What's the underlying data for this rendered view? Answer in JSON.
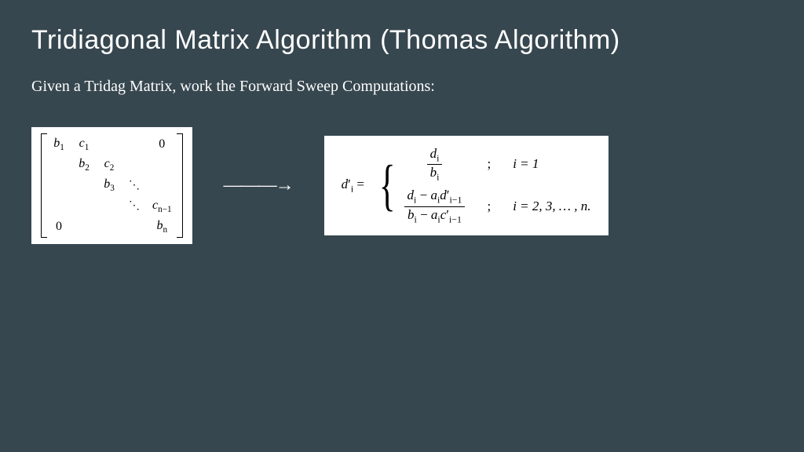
{
  "background_color": "#37474f",
  "text_color": "#ffffff",
  "formula_bg": "#ffffff",
  "formula_text": "#000000",
  "title": "Tridiagonal Matrix Algorithm (Thomas Algorithm)",
  "title_fontsize": 34,
  "subtitle": "Given a Tridag Matrix, work the Forward Sweep Computations:",
  "subtitle_fontsize": 20,
  "matrix": {
    "b1": "b",
    "b1_sub": "1",
    "c1": "c",
    "c1_sub": "1",
    "zero_tr": "0",
    "b2": "b",
    "b2_sub": "2",
    "c2": "c",
    "c2_sub": "2",
    "b3": "b",
    "b3_sub": "3",
    "ddots1": "⋱",
    "ddots2": "⋱",
    "cn1": "c",
    "cn1_sub": "n−1",
    "zero_bl": "0",
    "bn": "b",
    "bn_sub": "n"
  },
  "arrow": "———→",
  "formula": {
    "lhs_var": "d",
    "lhs_prime": "′",
    "lhs_sub": "i",
    "eq": " = ",
    "case1_num_var": "d",
    "case1_num_sub": "i",
    "case1_den_var": "b",
    "case1_den_sub": "i",
    "case1_semi": ";",
    "case1_cond": "i = 1",
    "case2_num": "dᵢ − aᵢd′ᵢ₋₁",
    "case2_num_p1": "d",
    "case2_num_p1_sub": "i",
    "case2_num_minus": " − ",
    "case2_num_p2": "a",
    "case2_num_p2_sub": "i",
    "case2_num_p3": "d",
    "case2_num_p3_prime": "′",
    "case2_num_p3_sub": "i−1",
    "case2_den_p1": "b",
    "case2_den_p1_sub": "i",
    "case2_den_minus": " − ",
    "case2_den_p2": "a",
    "case2_den_p2_sub": "i",
    "case2_den_p3": "c",
    "case2_den_p3_prime": "′",
    "case2_den_p3_sub": "i−1",
    "case2_semi": ";",
    "case2_cond": "i = 2, 3, … , n."
  }
}
